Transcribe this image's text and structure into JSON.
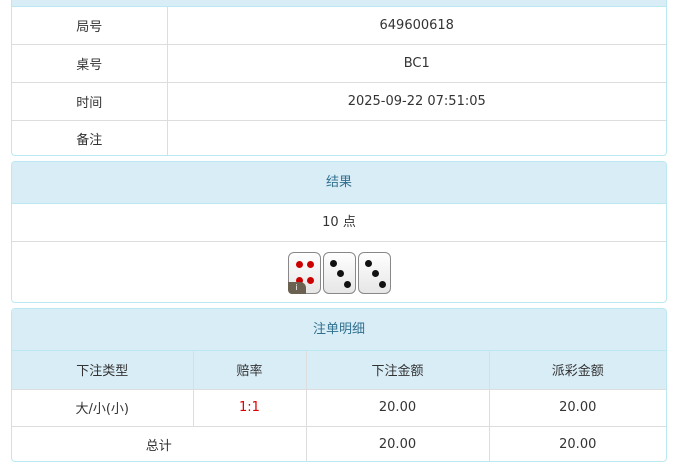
{
  "info": {
    "rows": [
      {
        "label": "局号",
        "value": "649600618"
      },
      {
        "label": "桌号",
        "value": "BC1"
      },
      {
        "label": "时间",
        "value": "2025-09-22 07:51:05"
      },
      {
        "label": "备注",
        "value": ""
      }
    ]
  },
  "result": {
    "title": "结果",
    "points": "10 点",
    "dice": [
      4,
      3,
      3
    ],
    "info_badge": "i"
  },
  "bets": {
    "title": "注单明细",
    "headers": [
      "下注类型",
      "赔率",
      "下注金额",
      "派彩金额"
    ],
    "rows": [
      {
        "type": "大/小(小)",
        "odds": "1:1",
        "amount": "20.00",
        "payout": "20.00"
      }
    ],
    "total": {
      "label": "总计",
      "amount": "20.00",
      "payout": "20.00"
    }
  },
  "colors": {
    "odds": "#e00000",
    "header_bg": "#d9edf7",
    "header_text": "#31708f"
  }
}
